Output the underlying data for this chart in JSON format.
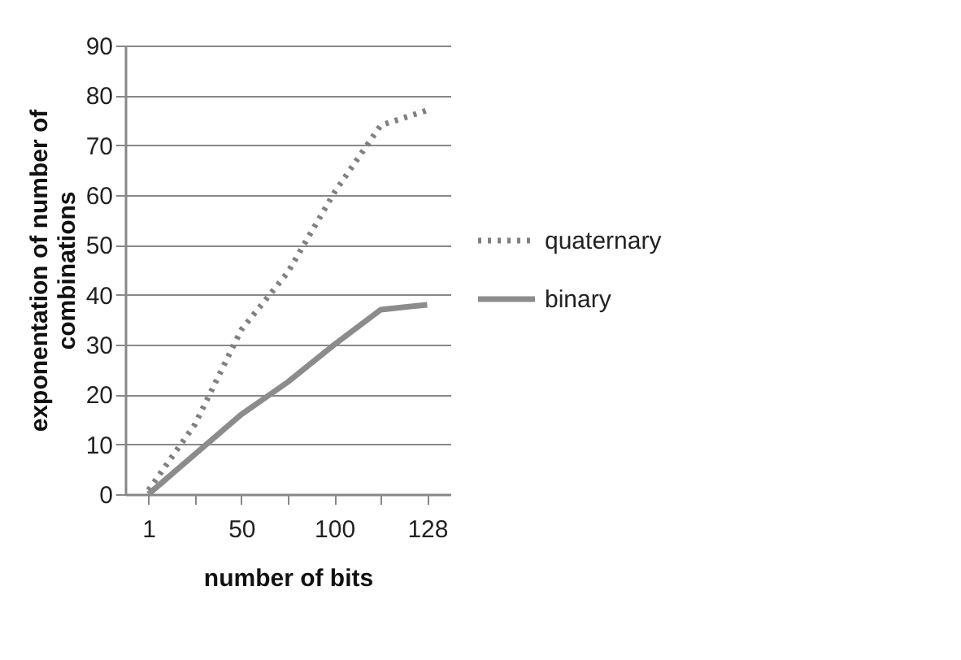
{
  "chart_data": {
    "type": "line",
    "xlabel": "number of bits",
    "ylabel": "exponentation of number of combinations",
    "categories": [
      "1",
      null,
      "50",
      null,
      "100",
      null,
      "128"
    ],
    "series": [
      {
        "name": "quaternary",
        "color": "#808080",
        "line_style": "dotted",
        "values": [
          0.8,
          14,
          33,
          44.5,
          60.5,
          74,
          77
        ]
      },
      {
        "name": "binary",
        "color": "#8c8c8c",
        "line_style": "solid",
        "values": [
          0,
          8,
          16,
          22.5,
          30,
          37,
          38
        ]
      }
    ],
    "ylim": [
      0,
      90
    ],
    "yticks": [
      0,
      10,
      20,
      30,
      40,
      50,
      60,
      70,
      80,
      90
    ],
    "grid": "y",
    "legend": "right"
  }
}
